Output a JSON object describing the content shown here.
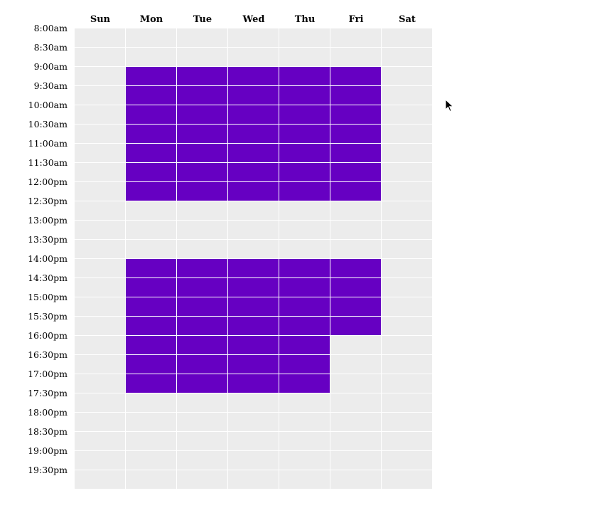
{
  "colors": {
    "cell_empty": "#ececec",
    "cell_selected": "#6600c2",
    "grid_line": "#ffffff"
  },
  "days": [
    "Sun",
    "Mon",
    "Tue",
    "Wed",
    "Thu",
    "Fri",
    "Sat"
  ],
  "times": [
    "8:00am",
    "8:30am",
    "9:00am",
    "9:30am",
    "10:00am",
    "10:30am",
    "11:00am",
    "11:30am",
    "12:00pm",
    "12:30pm",
    "13:00pm",
    "13:30pm",
    "14:00pm",
    "14:30pm",
    "15:00pm",
    "15:30pm",
    "16:00pm",
    "16:30pm",
    "17:00pm",
    "17:30pm",
    "18:00pm",
    "18:30pm",
    "19:00pm",
    "19:30pm"
  ],
  "selected": {
    "Sun": [],
    "Mon": [
      "9:00am",
      "9:30am",
      "10:00am",
      "10:30am",
      "11:00am",
      "11:30am",
      "12:00pm",
      "14:00pm",
      "14:30pm",
      "15:00pm",
      "15:30pm",
      "16:00pm",
      "16:30pm",
      "17:00pm"
    ],
    "Tue": [
      "9:00am",
      "9:30am",
      "10:00am",
      "10:30am",
      "11:00am",
      "11:30am",
      "12:00pm",
      "14:00pm",
      "14:30pm",
      "15:00pm",
      "15:30pm",
      "16:00pm",
      "16:30pm",
      "17:00pm"
    ],
    "Wed": [
      "9:00am",
      "9:30am",
      "10:00am",
      "10:30am",
      "11:00am",
      "11:30am",
      "12:00pm",
      "14:00pm",
      "14:30pm",
      "15:00pm",
      "15:30pm",
      "16:00pm",
      "16:30pm",
      "17:00pm"
    ],
    "Thu": [
      "9:00am",
      "9:30am",
      "10:00am",
      "10:30am",
      "11:00am",
      "11:30am",
      "12:00pm",
      "14:00pm",
      "14:30pm",
      "15:00pm",
      "15:30pm",
      "16:00pm",
      "16:30pm",
      "17:00pm"
    ],
    "Fri": [
      "9:00am",
      "9:30am",
      "10:00am",
      "10:30am",
      "11:00am",
      "11:30am",
      "12:00pm",
      "14:00pm",
      "14:30pm",
      "15:00pm",
      "15:30pm"
    ],
    "Sat": []
  }
}
